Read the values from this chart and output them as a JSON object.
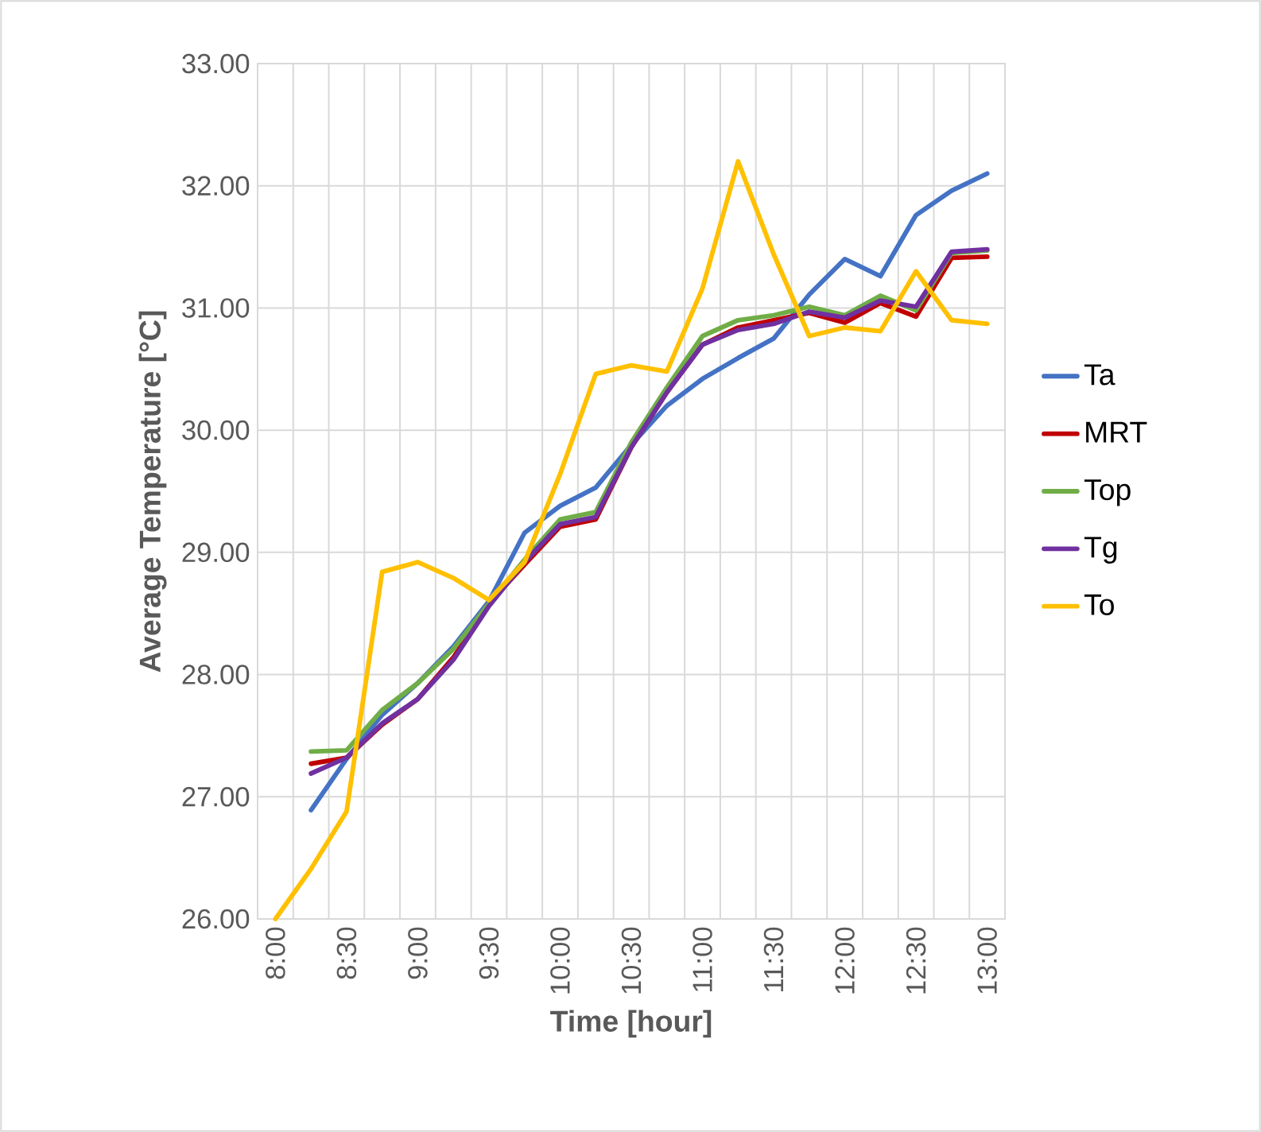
{
  "chart_data": {
    "type": "line",
    "xlabel": "Time [hour]",
    "ylabel": "Average Temperature [°C]",
    "categories": [
      "8:00",
      null,
      "8:30",
      null,
      "9:00",
      null,
      "9:30",
      null,
      "10:00",
      null,
      "10:30",
      null,
      "11:00",
      null,
      "11:30",
      null,
      "12:00",
      null,
      "12:30",
      null,
      "13:00"
    ],
    "series": [
      {
        "name": "Ta",
        "color": "#4472c4",
        "values": [
          null,
          26.89,
          27.31,
          27.67,
          27.93,
          28.23,
          28.6,
          29.16,
          29.38,
          29.53,
          29.88,
          30.2,
          30.42,
          30.59,
          30.75,
          31.11,
          31.4,
          31.26,
          31.76,
          31.96,
          32.1
        ]
      },
      {
        "name": "MRT",
        "color": "#c00000",
        "values": [
          null,
          27.27,
          27.32,
          27.59,
          27.8,
          28.14,
          28.58,
          28.9,
          29.21,
          29.27,
          29.86,
          30.31,
          30.7,
          30.84,
          30.9,
          30.96,
          30.88,
          31.04,
          30.93,
          31.41,
          31.42
        ]
      },
      {
        "name": "Top",
        "color": "#70ad47",
        "values": [
          null,
          27.37,
          27.38,
          27.71,
          27.93,
          28.21,
          28.58,
          28.94,
          29.27,
          29.33,
          29.9,
          30.35,
          30.77,
          30.9,
          30.94,
          31.01,
          30.94,
          31.1,
          30.98,
          31.45,
          31.47
        ]
      },
      {
        "name": "Tg",
        "color": "#7030a0",
        "values": [
          null,
          27.19,
          27.32,
          27.6,
          27.8,
          28.12,
          28.56,
          28.92,
          29.23,
          29.29,
          29.86,
          30.31,
          30.7,
          30.82,
          30.87,
          30.97,
          30.92,
          31.06,
          31.01,
          31.46,
          31.48
        ]
      },
      {
        "name": "To",
        "color": "#ffc000",
        "values": [
          26.0,
          26.41,
          26.88,
          28.84,
          28.92,
          28.79,
          28.61,
          28.92,
          29.64,
          30.46,
          30.53,
          30.48,
          31.16,
          32.2,
          31.44,
          30.77,
          30.84,
          30.81,
          31.3,
          30.9,
          30.87
        ]
      }
    ],
    "ylim": [
      26,
      33
    ],
    "yticks": [
      {
        "value": 26,
        "label": "26.00"
      },
      {
        "value": 27,
        "label": "27.00"
      },
      {
        "value": 28,
        "label": "28.00"
      },
      {
        "value": 29,
        "label": "29.00"
      },
      {
        "value": 30,
        "label": "30.00"
      },
      {
        "value": 31,
        "label": "31.00"
      },
      {
        "value": 32,
        "label": "32.00"
      },
      {
        "value": 33,
        "label": "33.00"
      }
    ],
    "grid": true,
    "legend": "right",
    "marker": "none",
    "line_style": "solid"
  }
}
